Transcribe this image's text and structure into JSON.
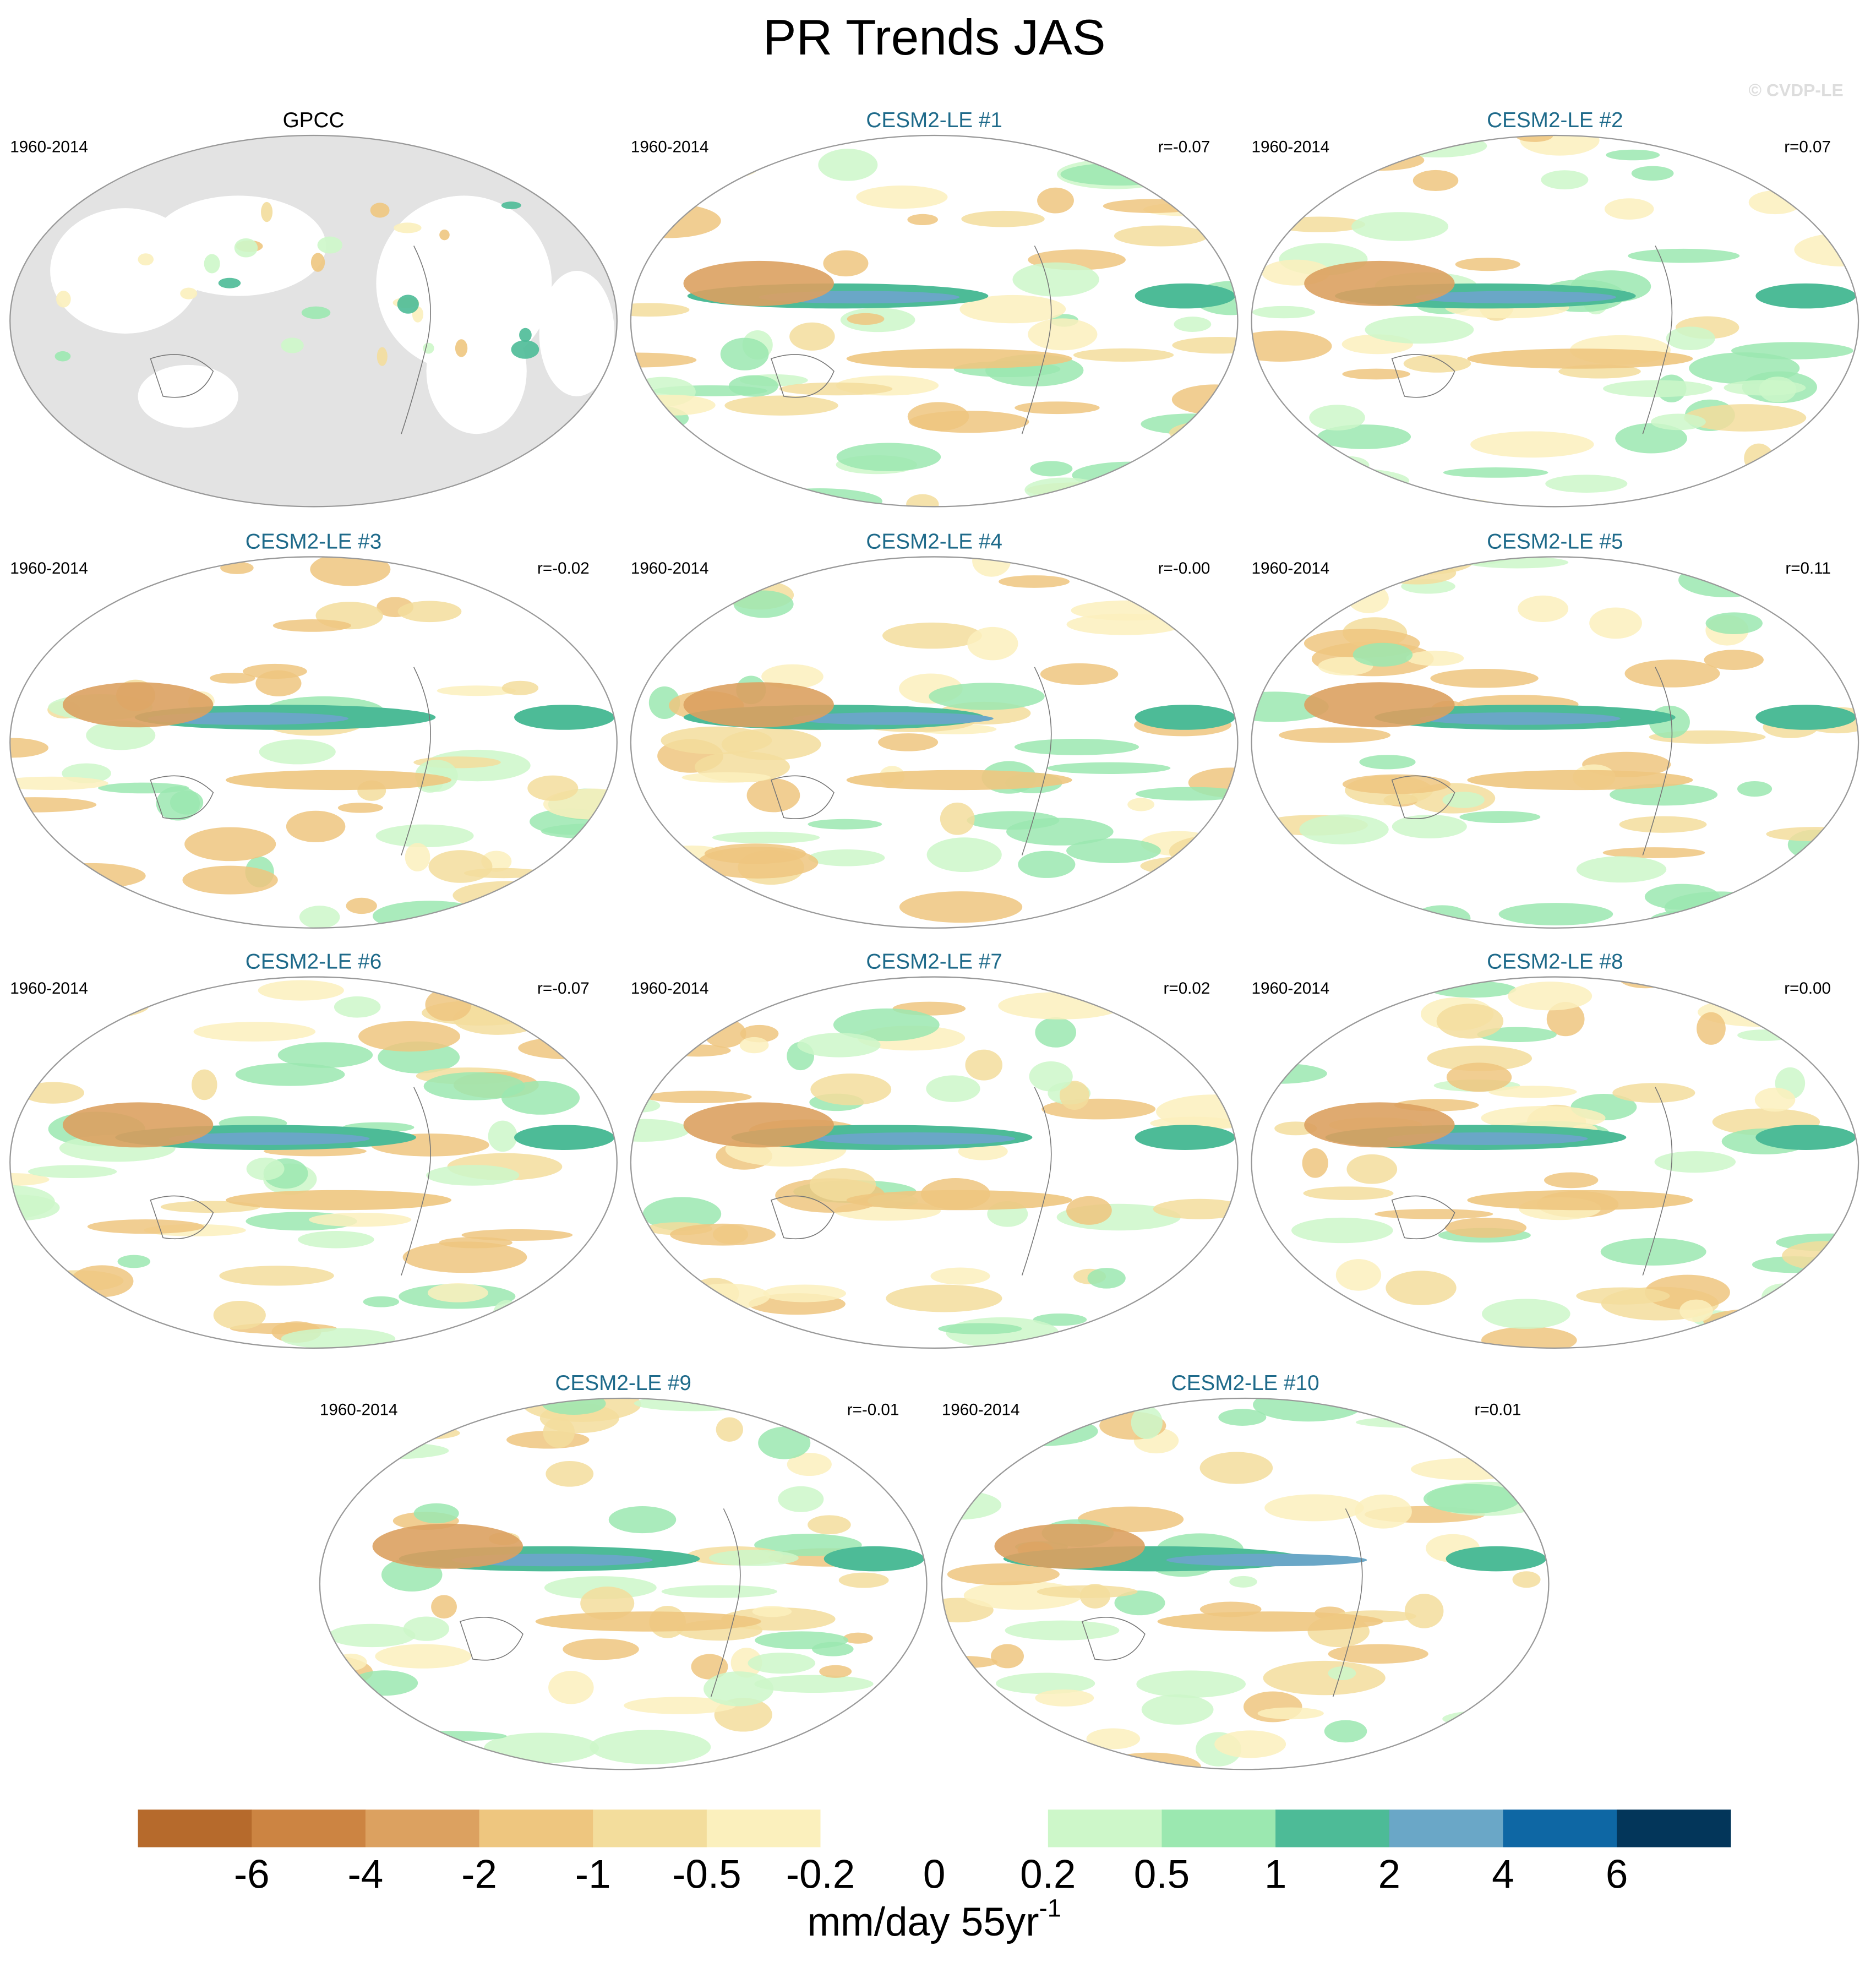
{
  "chart_data": {
    "type": "map-grid",
    "title": "PR Trends JAS",
    "watermark": "© CVDP-LE",
    "panels": [
      {
        "title": "GPCC",
        "period": "1960-2014",
        "observed": true
      },
      {
        "title": "CESM2-LE #1",
        "period": "1960-2014",
        "r": "r=-0.07"
      },
      {
        "title": "CESM2-LE #2",
        "period": "1960-2014",
        "r": "r=0.07"
      },
      {
        "title": "CESM2-LE #3",
        "period": "1960-2014",
        "r": "r=-0.02"
      },
      {
        "title": "CESM2-LE #4",
        "period": "1960-2014",
        "r": "r=-0.00"
      },
      {
        "title": "CESM2-LE #5",
        "period": "1960-2014",
        "r": "r=0.11"
      },
      {
        "title": "CESM2-LE #6",
        "period": "1960-2014",
        "r": "r=-0.07"
      },
      {
        "title": "CESM2-LE #7",
        "period": "1960-2014",
        "r": "r=0.02"
      },
      {
        "title": "CESM2-LE #8",
        "period": "1960-2014",
        "r": "r=0.00"
      },
      {
        "title": "CESM2-LE #9",
        "period": "1960-2014",
        "r": "r=-0.01"
      },
      {
        "title": "CESM2-LE #10",
        "period": "1960-2014",
        "r": "r=0.01"
      }
    ],
    "colorbar": {
      "levels": [
        -6,
        -4,
        -2,
        -1,
        -0.5,
        -0.2,
        0,
        0.2,
        0.5,
        1,
        2,
        4,
        6
      ],
      "colors": [
        "#b66a2c",
        "#cc8442",
        "#dca160",
        "#eec67f",
        "#f3dd9c",
        "#fbf0bd",
        "#ffffff",
        "#ffffff",
        "#cdf7c9",
        "#9be8b0",
        "#4dbb97",
        "#6aa7c7",
        "#0e67a4",
        "#03365a"
      ],
      "units": "mm/day 55yr",
      "units_exponent": "-1"
    }
  }
}
